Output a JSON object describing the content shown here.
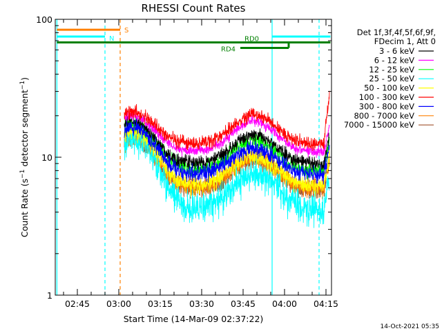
{
  "chart_data": {
    "type": "line",
    "title": "RHESSI Count Rates",
    "xlabel": "Start Time (14-Mar-09 02:37:22)",
    "ylabel_main": "Count Rate (s",
    "ylabel_sup1": "−1",
    "ylabel_mid": " detector segment",
    "ylabel_sup2": "−1",
    "ylabel_end": ")",
    "y_scale": "log",
    "ylim": [
      1,
      100
    ],
    "xlim_minutes_since_0237": [
      0,
      100
    ],
    "x_tick_labels": [
      "02:45",
      "03:00",
      "03:15",
      "03:30",
      "03:45",
      "04:00",
      "04:15"
    ],
    "y_tick_labels": [
      "1",
      "10",
      "100"
    ],
    "legend": {
      "header_line1": "Det 1f,3f,4f,5f,6f,9f,",
      "header_line2": "FDecim 1, Att 0",
      "placement": "right"
    },
    "series": [
      {
        "name": "3 - 6 keV",
        "color": "#000000"
      },
      {
        "name": "6 - 12 keV",
        "color": "#ff00ff"
      },
      {
        "name": "12 - 25 keV",
        "color": "#00ff00"
      },
      {
        "name": "25 - 50 keV",
        "color": "#00ffff"
      },
      {
        "name": "50 - 100 keV",
        "color": "#ffff00"
      },
      {
        "name": "100 - 300 keV",
        "color": "#ff0000"
      },
      {
        "name": "300 - 800 keV",
        "color": "#0000ff"
      },
      {
        "name": "800 - 7000 keV",
        "color": "#ff8000"
      },
      {
        "name": "7000 - 15000 keV",
        "color": "#a0522d"
      }
    ],
    "annotations": {
      "saa_label": "S",
      "night_label": "N",
      "rd0_label": "RD0",
      "rd4_label": "RD4"
    },
    "colors": {
      "saa": "#ff8000",
      "night": "#00ffff",
      "radiation": "#008000",
      "axis": "#000000"
    }
  },
  "footer": {
    "timestamp": "14-Oct-2021 05:35"
  }
}
